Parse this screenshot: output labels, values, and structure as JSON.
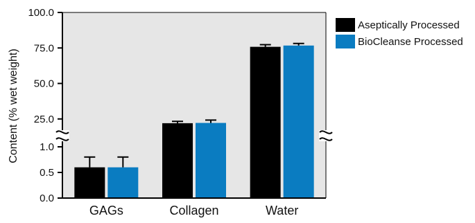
{
  "chart_data": {
    "type": "bar",
    "ylabel": "Content (% wet weight)",
    "categories": [
      "GAGs",
      "Collagen",
      "Water"
    ],
    "series": [
      {
        "name": "Aseptically Processed",
        "color": "#000000",
        "values": [
          0.6,
          22.0,
          75.8
        ],
        "errors": [
          0.2,
          1.3,
          1.5
        ]
      },
      {
        "name": "BioCleanse Processed",
        "color": "#0a7cc1",
        "values": [
          0.6,
          22.2,
          76.7
        ],
        "errors": [
          0.2,
          2.0,
          1.5
        ]
      }
    ],
    "y_segments": [
      {
        "range": [
          0,
          1.0
        ],
        "ticks": [
          "0.0",
          "0.5",
          "1.0"
        ]
      },
      {
        "range": [
          20,
          100
        ],
        "ticks": [
          "25.0",
          "50.0",
          "75.0",
          "100.0"
        ]
      }
    ],
    "axis_break": true,
    "plot_background": "#e6e6e6",
    "legend_position": "right",
    "grid": false
  }
}
